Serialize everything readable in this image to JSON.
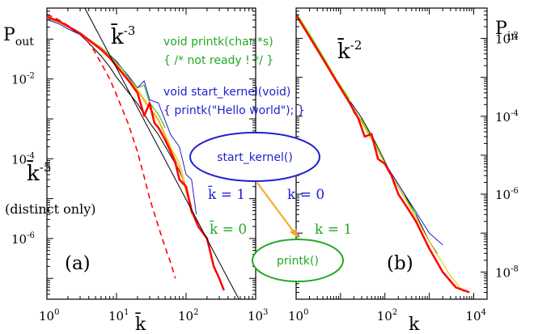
{
  "colors": {
    "black": "#000000",
    "red": "#ff0000",
    "blue": "#1f1fd0",
    "green": "#22aa22",
    "yellow": "#e8c000",
    "orange": "#f5a623",
    "lime": "#66dd00"
  },
  "chart_data": [
    {
      "type": "line",
      "panel_label": "(a)",
      "xlabel": "k̄",
      "ylabel_base": "P",
      "ylabel_sub": "out",
      "x_scale": "log",
      "y_scale": "log",
      "xlim": [
        1,
        1000
      ],
      "ylim": [
        3e-08,
        0.6
      ],
      "x_ticks": [
        {
          "base": "10",
          "exp": "0"
        },
        {
          "base": "10",
          "exp": "1"
        },
        {
          "base": "10",
          "exp": "2"
        },
        {
          "base": "10",
          "exp": "3"
        }
      ],
      "y_ticks": [
        {
          "base": "10",
          "exp": "-2"
        },
        {
          "base": "10",
          "exp": "-4"
        },
        {
          "base": "10",
          "exp": "-6"
        }
      ],
      "series": [
        {
          "color": "black",
          "width": 1,
          "x": [
            1,
            1.5,
            2,
            3,
            4,
            6,
            8,
            10,
            15,
            20,
            30,
            40,
            60,
            80,
            100,
            120
          ],
          "y": [
            0.38,
            0.28,
            0.2,
            0.13,
            0.08,
            0.038,
            0.02,
            0.011,
            0.0045,
            0.0024,
            0.0008,
            0.0004,
            0.00012,
            5e-05,
            1.8e-05,
            6e-06
          ]
        },
        {
          "color": "blue",
          "width": 1,
          "x": [
            1,
            1.5,
            2,
            3,
            4,
            6,
            8,
            10,
            15,
            20,
            25,
            30,
            40,
            60,
            80,
            100,
            120,
            140
          ],
          "y": [
            0.31,
            0.24,
            0.18,
            0.13,
            0.095,
            0.06,
            0.04,
            0.028,
            0.011,
            0.006,
            0.009,
            0.003,
            0.0025,
            0.0004,
            0.0002,
            4e-05,
            3e-05,
            4e-06
          ]
        },
        {
          "color": "green",
          "width": 1,
          "x": [
            1,
            1.5,
            2,
            3,
            4,
            6,
            8,
            10,
            15,
            20,
            25,
            30,
            40,
            50
          ],
          "y": [
            0.33,
            0.26,
            0.2,
            0.14,
            0.1,
            0.062,
            0.04,
            0.026,
            0.012,
            0.006,
            0.007,
            0.0025,
            0.0013,
            0.0006
          ]
        },
        {
          "color": "yellow",
          "width": 1,
          "x": [
            1,
            1.5,
            2,
            3,
            4,
            6,
            8,
            10,
            15,
            20,
            30,
            40,
            60,
            80,
            100,
            120
          ],
          "y": [
            0.34,
            0.26,
            0.2,
            0.14,
            0.1,
            0.06,
            0.038,
            0.024,
            0.01,
            0.0055,
            0.002,
            0.001,
            0.0002,
            8e-05,
            2e-05,
            5e-06
          ]
        },
        {
          "color": "orange",
          "width": 1.2,
          "x": [
            1,
            1.5,
            2,
            3,
            4,
            6,
            8,
            10,
            15,
            20,
            30,
            40,
            60,
            80,
            100,
            120
          ],
          "y": [
            0.35,
            0.27,
            0.21,
            0.14,
            0.1,
            0.06,
            0.037,
            0.023,
            0.0095,
            0.005,
            0.0018,
            0.0009,
            0.00018,
            6e-05,
            1.5e-05,
            4e-06
          ]
        },
        {
          "color": "red",
          "width": 2.5,
          "x": [
            1,
            1.5,
            2,
            3,
            4,
            6,
            8,
            10,
            15,
            20,
            25,
            30,
            35,
            40,
            50,
            60,
            70,
            80,
            100,
            120,
            150,
            200,
            250,
            300,
            350
          ],
          "y": [
            0.36,
            0.28,
            0.21,
            0.14,
            0.095,
            0.055,
            0.034,
            0.021,
            0.009,
            0.0045,
            0.0012,
            0.0025,
            0.0008,
            0.0006,
            0.0003,
            0.00015,
            8e-05,
            3e-05,
            2e-05,
            5e-06,
            2e-06,
            1e-06,
            2e-07,
            1e-07,
            5e-08
          ]
        },
        {
          "color": "red",
          "width": 1.6,
          "dash": "7,5",
          "x": [
            1,
            1.5,
            2,
            3,
            4,
            5,
            6,
            8,
            10,
            15,
            20,
            25,
            30,
            40,
            50,
            60,
            70
          ],
          "y": [
            0.42,
            0.3,
            0.22,
            0.14,
            0.08,
            0.045,
            0.025,
            0.01,
            0.004,
            0.0007,
            0.00015,
            3.5e-05,
            1e-05,
            2e-06,
            6e-07,
            2.5e-07,
            1e-07
          ]
        },
        {
          "color": "black",
          "width": 1,
          "x": [
            3.5,
            600
          ],
          "y": [
            0.6,
            2.6e-08
          ],
          "note": "guide slope -3"
        }
      ],
      "annotations": {
        "slope3_base": "k̄",
        "slope3_exp": "-3",
        "slope5_base": "k̄",
        "slope5_exp": "-5",
        "distinct": "(distinct only)"
      }
    },
    {
      "type": "line",
      "panel_label": "(b)",
      "xlabel": "k",
      "ylabel_base": "P",
      "ylabel_sub": "in",
      "x_scale": "log",
      "y_scale": "log",
      "xlim": [
        1,
        20000
      ],
      "ylim": [
        2e-09,
        0.06
      ],
      "x_ticks": [
        {
          "base": "10",
          "exp": "0"
        },
        {
          "base": "10",
          "exp": "2"
        },
        {
          "base": "10",
          "exp": "4"
        }
      ],
      "y_ticks": [
        {
          "base": "10",
          "exp": "-2"
        },
        {
          "base": "10",
          "exp": "-4"
        },
        {
          "base": "10",
          "exp": "-6"
        },
        {
          "base": "10",
          "exp": "-8"
        }
      ],
      "series": [
        {
          "color": "black",
          "width": 1,
          "x": [
            1,
            2,
            4,
            8,
            15,
            30,
            60,
            120,
            250,
            500,
            1000,
            1500
          ],
          "y": [
            0.04,
            0.012,
            0.003,
            0.0009,
            0.00028,
            9e-05,
            2.2e-05,
            4.5e-06,
            1.2e-06,
            3e-07,
            6e-08,
            3e-08
          ]
        },
        {
          "color": "blue",
          "width": 1,
          "x": [
            1,
            2,
            4,
            8,
            15,
            30,
            60,
            120,
            250,
            500,
            1000,
            2000
          ],
          "y": [
            0.043,
            0.012,
            0.0033,
            0.0009,
            0.00024,
            7e-05,
            1.8e-05,
            4.5e-06,
            1.2e-06,
            3.5e-07,
            1e-07,
            5e-08
          ]
        },
        {
          "color": "lime",
          "width": 1.5,
          "x": [
            1,
            2,
            4,
            8,
            15,
            20,
            30,
            60,
            120,
            250,
            500
          ],
          "y": [
            0.045,
            0.013,
            0.0035,
            0.0009,
            0.0003,
            0.00012,
            8e-05,
            2e-05,
            4e-06,
            1e-06,
            3e-07
          ]
        },
        {
          "color": "yellow",
          "width": 1,
          "x": [
            1,
            2,
            4,
            8,
            15,
            30,
            60,
            120,
            250,
            500,
            1000,
            3000,
            6000
          ],
          "y": [
            0.042,
            0.012,
            0.0032,
            0.0009,
            0.00025,
            7e-05,
            1.8e-05,
            4e-06,
            1e-06,
            2.5e-07,
            6e-08,
            8e-09,
            3e-09
          ]
        },
        {
          "color": "red",
          "width": 2.5,
          "x": [
            1,
            2,
            4,
            8,
            15,
            25,
            35,
            50,
            70,
            100,
            140,
            200,
            300,
            500,
            1000,
            2000,
            4000,
            8000
          ],
          "y": [
            0.04,
            0.011,
            0.003,
            0.0008,
            0.00025,
            9e-05,
            3e-05,
            3.5e-05,
            8e-06,
            6e-06,
            3e-06,
            1e-06,
            5e-07,
            2e-07,
            4e-08,
            1e-08,
            4e-09,
            3e-09
          ]
        }
      ],
      "annotations": {
        "slope2_base": "k̄",
        "slope2_exp": "-2"
      }
    }
  ],
  "code_lines": [
    {
      "text": "void printk(char *s)",
      "color": "green"
    },
    {
      "text": "{ /* not ready ! */ }",
      "color": "green"
    },
    {
      "text": "void start_kernel(void)",
      "color": "blue"
    },
    {
      "text": "{ printk(\"Hello world\"); }",
      "color": "blue"
    }
  ],
  "graph": {
    "start_node": "start_kernel()",
    "printk_node": "printk()",
    "start_kbar": "k̄ = 1",
    "start_k": "k = 0",
    "printk_kbar": "k̄ = 0",
    "printk_k": "k = 1"
  }
}
